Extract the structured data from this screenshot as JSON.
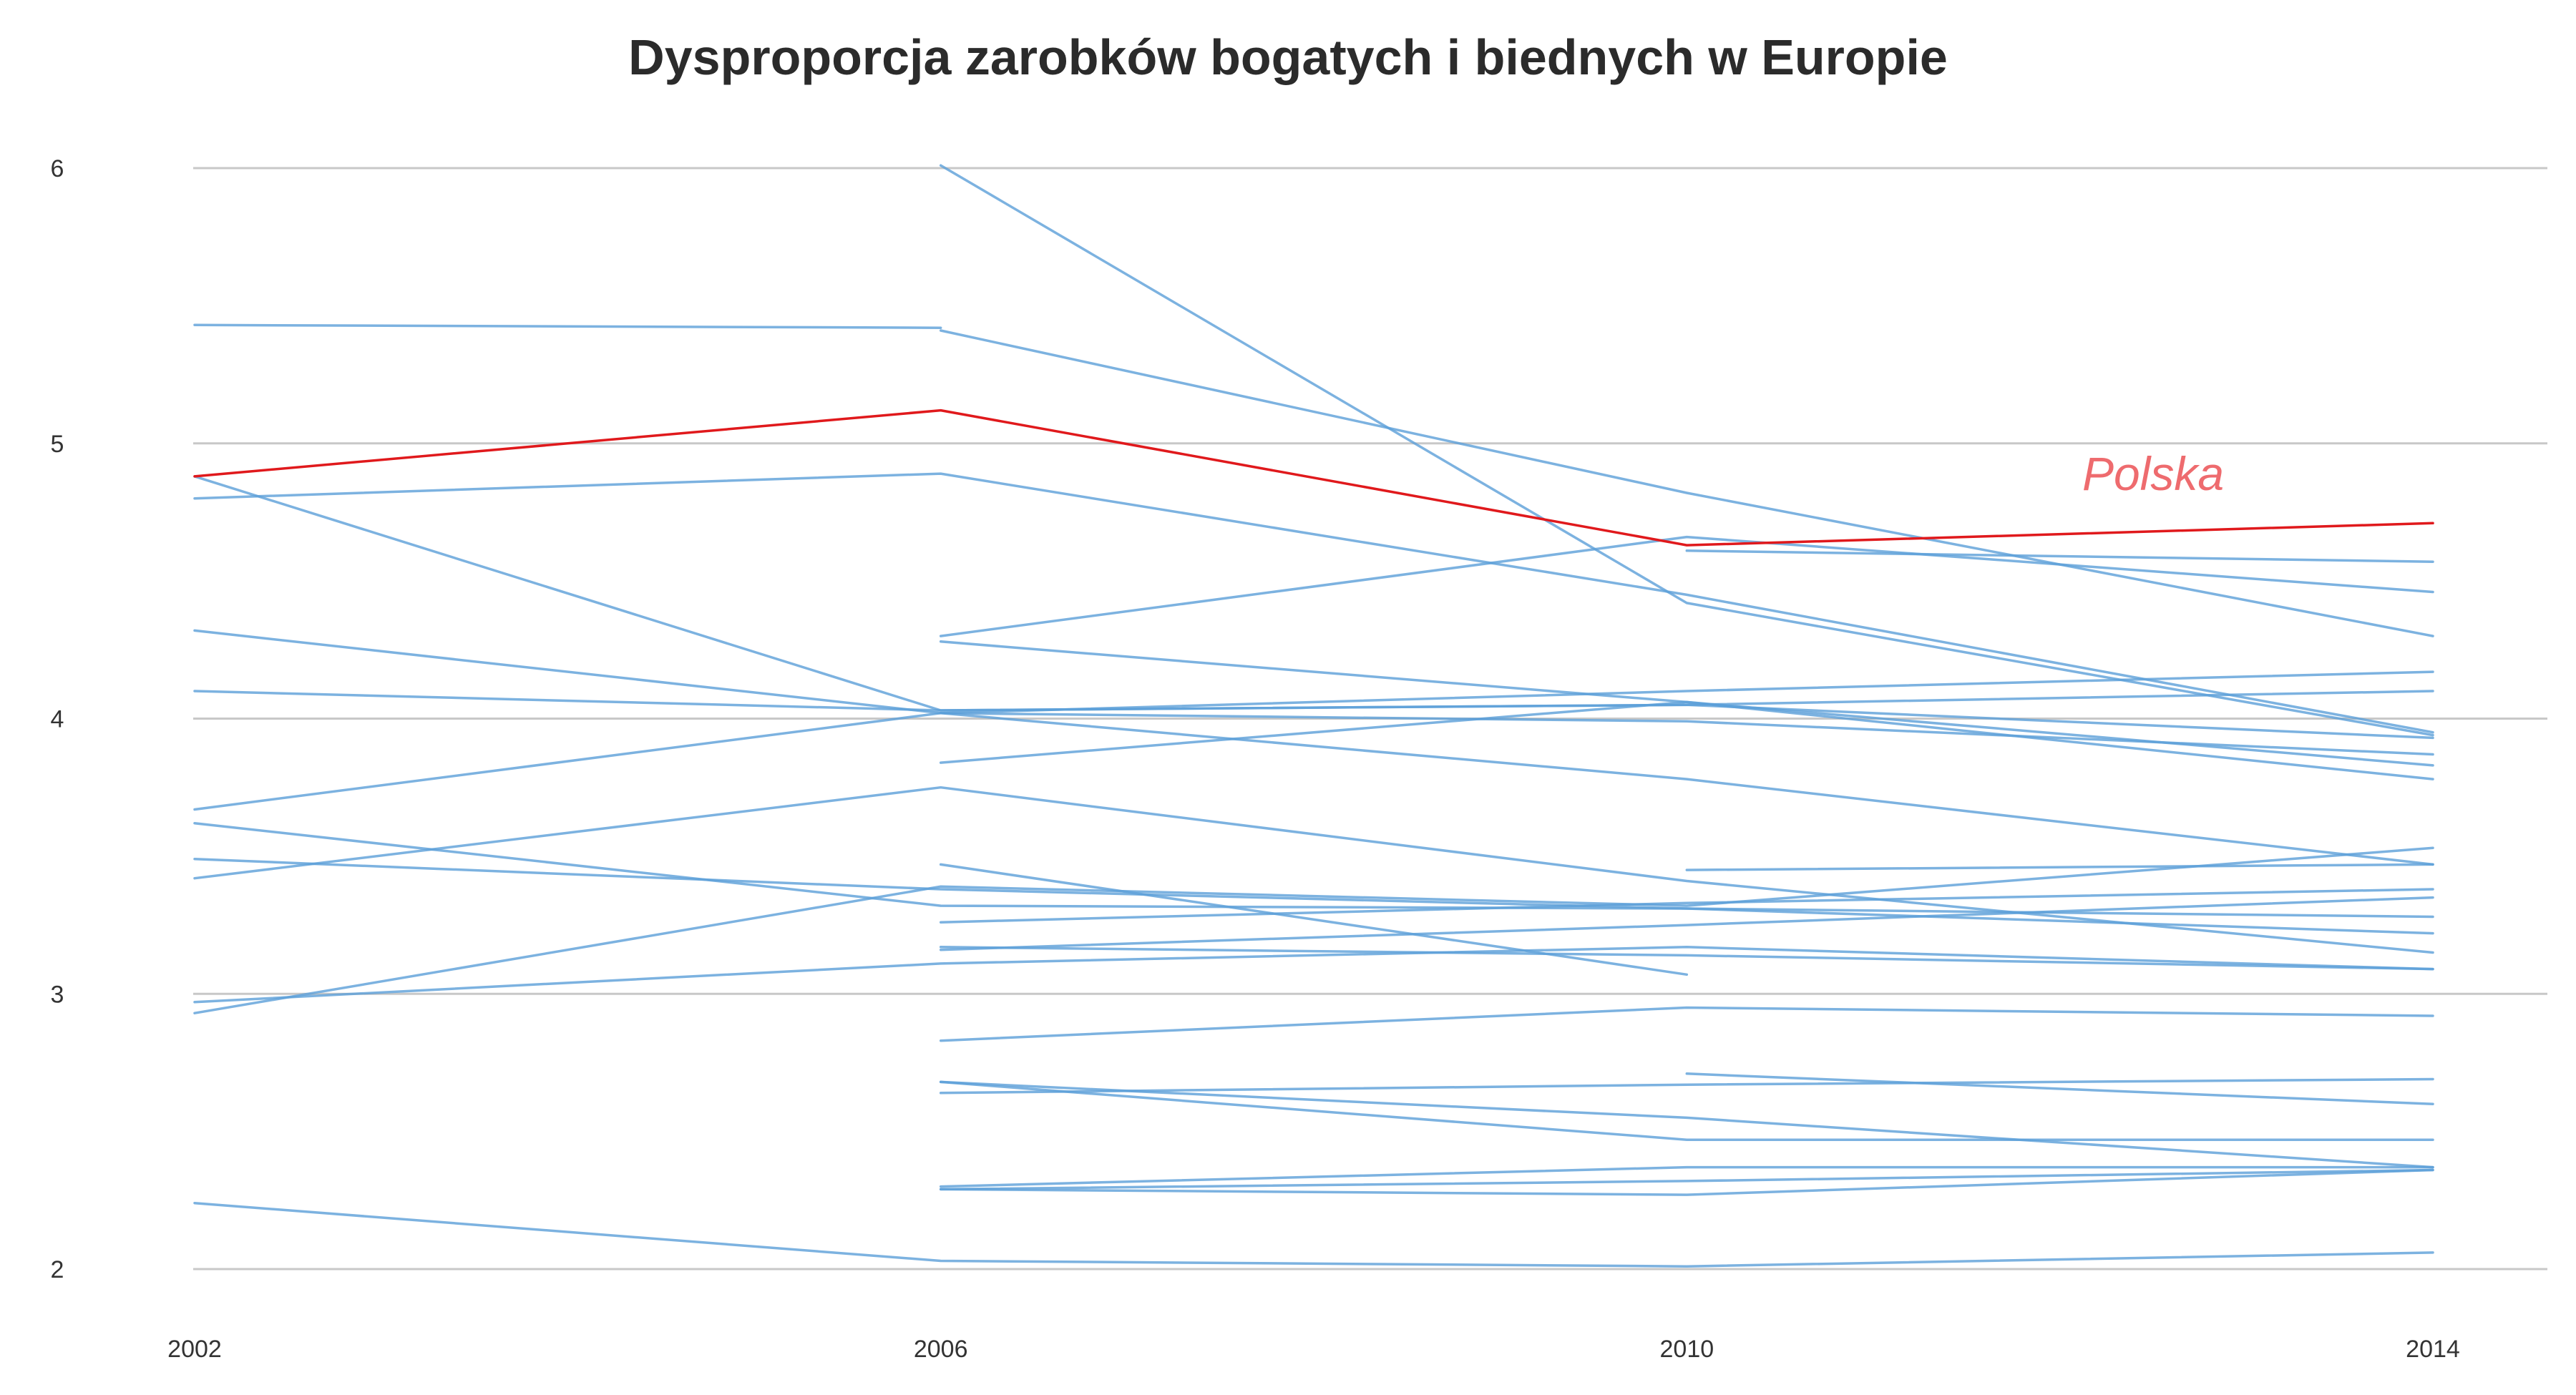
{
  "chart_data": {
    "type": "line",
    "title": "Dysproporcja zarobków bogatych i biednych w Europie",
    "xlabel": "",
    "ylabel": "",
    "x": [
      2002,
      2006,
      2010,
      2014
    ],
    "xlim": [
      2002,
      2014
    ],
    "ylim": [
      2,
      6
    ],
    "yticks": [
      2,
      3,
      4,
      5,
      6
    ],
    "grid": "horizontal",
    "legend": "none",
    "colors": {
      "default": "#5b9fd8",
      "highlight": "#e0191c",
      "annotation": "#ee6b6e"
    },
    "annotations": [
      {
        "text": "Polska",
        "x": 2012.5,
        "y": 4.83
      }
    ],
    "series": [
      {
        "name": "Polska",
        "values": [
          4.88,
          5.12,
          4.63,
          4.71
        ],
        "highlight": true
      },
      {
        "values": [
          5.43,
          5.42,
          null,
          null
        ]
      },
      {
        "values": [
          4.88,
          4.03,
          4.05,
          3.93
        ]
      },
      {
        "values": [
          4.8,
          4.89,
          4.45,
          3.95
        ]
      },
      {
        "values": [
          4.32,
          4.02,
          3.99,
          3.87
        ]
      },
      {
        "values": [
          4.1,
          4.03,
          4.05,
          4.1
        ]
      },
      {
        "values": [
          3.67,
          4.02,
          4.1,
          4.17
        ]
      },
      {
        "values": [
          3.62,
          3.32,
          3.31,
          3.28
        ]
      },
      {
        "values": [
          3.49,
          3.38,
          3.31,
          3.22
        ]
      },
      {
        "values": [
          3.42,
          3.75,
          3.41,
          3.15
        ]
      },
      {
        "values": [
          2.97,
          3.11,
          3.17,
          3.09
        ]
      },
      {
        "values": [
          2.93,
          3.39,
          3.32,
          3.53
        ]
      },
      {
        "values": [
          2.24,
          2.03,
          2.01,
          2.06
        ]
      },
      {
        "values": [
          null,
          6.01,
          4.42,
          3.94
        ]
      },
      {
        "values": [
          null,
          5.41,
          4.82,
          4.3
        ]
      },
      {
        "values": [
          null,
          4.3,
          4.66,
          4.46
        ]
      },
      {
        "values": [
          null,
          4.28,
          4.06,
          3.78
        ]
      },
      {
        "values": [
          null,
          3.84,
          4.06,
          3.83
        ]
      },
      {
        "values": [
          null,
          4.02,
          3.78,
          3.47
        ]
      },
      {
        "values": [
          null,
          3.47,
          3.07,
          null
        ]
      },
      {
        "values": [
          null,
          3.26,
          3.33,
          3.38
        ]
      },
      {
        "values": [
          null,
          3.16,
          3.25,
          3.35
        ]
      },
      {
        "values": [
          null,
          3.17,
          3.14,
          3.09
        ]
      },
      {
        "values": [
          null,
          2.83,
          2.95,
          2.92
        ]
      },
      {
        "values": [
          null,
          2.68,
          2.55,
          2.37
        ]
      },
      {
        "values": [
          null,
          2.64,
          2.67,
          2.69
        ]
      },
      {
        "values": [
          null,
          2.68,
          2.47,
          2.47
        ]
      },
      {
        "values": [
          null,
          2.3,
          2.37,
          2.37
        ]
      },
      {
        "values": [
          null,
          2.29,
          2.27,
          2.36
        ]
      },
      {
        "values": [
          null,
          2.29,
          2.32,
          2.36
        ]
      },
      {
        "values": [
          null,
          null,
          3.45,
          3.47
        ]
      },
      {
        "values": [
          null,
          null,
          4.61,
          4.57
        ]
      },
      {
        "values": [
          null,
          null,
          2.71,
          2.6
        ]
      }
    ]
  }
}
